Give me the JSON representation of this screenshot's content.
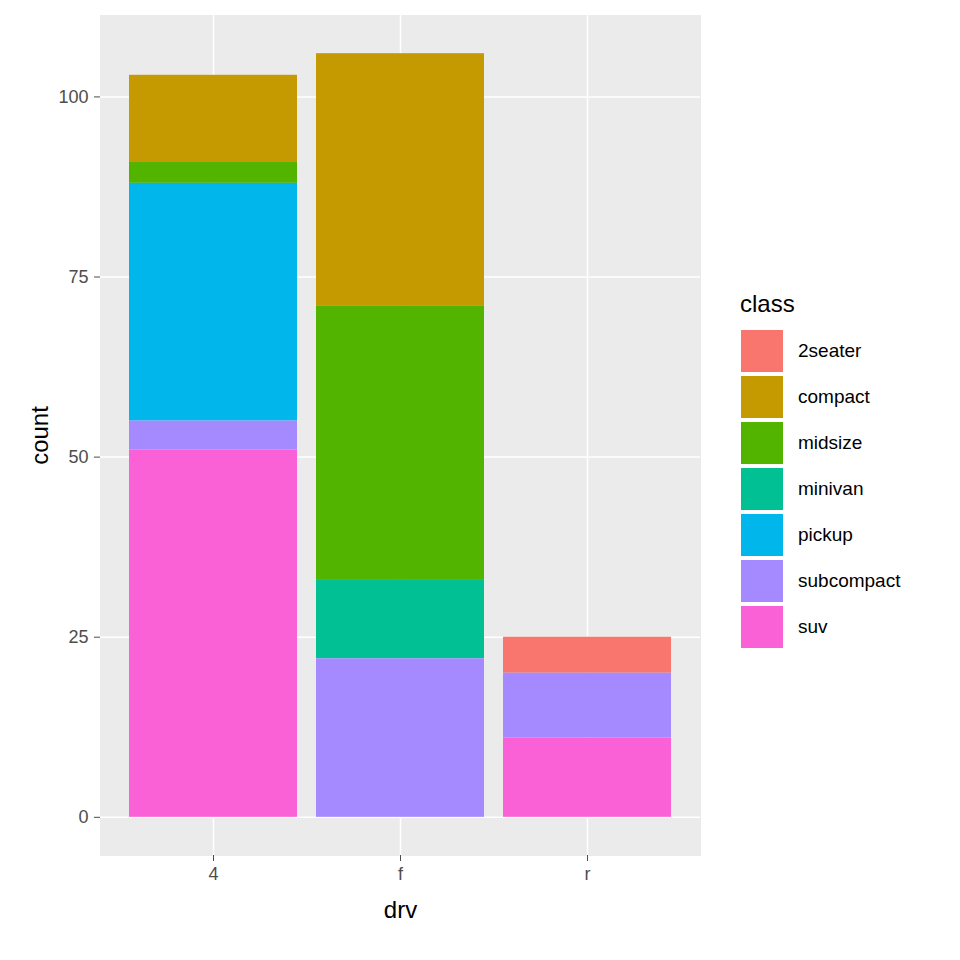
{
  "chart_data": {
    "type": "bar",
    "stacked": true,
    "grid": true,
    "legend": "right",
    "x_label": "drv",
    "y_label": "count",
    "legend_title": "class",
    "categories": [
      "4",
      "f",
      "r"
    ],
    "series": [
      {
        "name": "2seater",
        "color": "#F8766D",
        "values": [
          0,
          0,
          5
        ]
      },
      {
        "name": "compact",
        "color": "#C49A00",
        "values": [
          12,
          35,
          0
        ]
      },
      {
        "name": "midsize",
        "color": "#53B400",
        "values": [
          3,
          38,
          0
        ]
      },
      {
        "name": "minivan",
        "color": "#00C094",
        "values": [
          0,
          11,
          0
        ]
      },
      {
        "name": "pickup",
        "color": "#00B6EB",
        "values": [
          33,
          0,
          0
        ]
      },
      {
        "name": "subcompact",
        "color": "#A58AFF",
        "values": [
          4,
          22,
          9
        ]
      },
      {
        "name": "suv",
        "color": "#FB61D7",
        "values": [
          51,
          0,
          11
        ]
      }
    ],
    "ylim": [
      -5.3,
      111.3
    ],
    "yticks": [
      0,
      25,
      50,
      75,
      100
    ]
  }
}
